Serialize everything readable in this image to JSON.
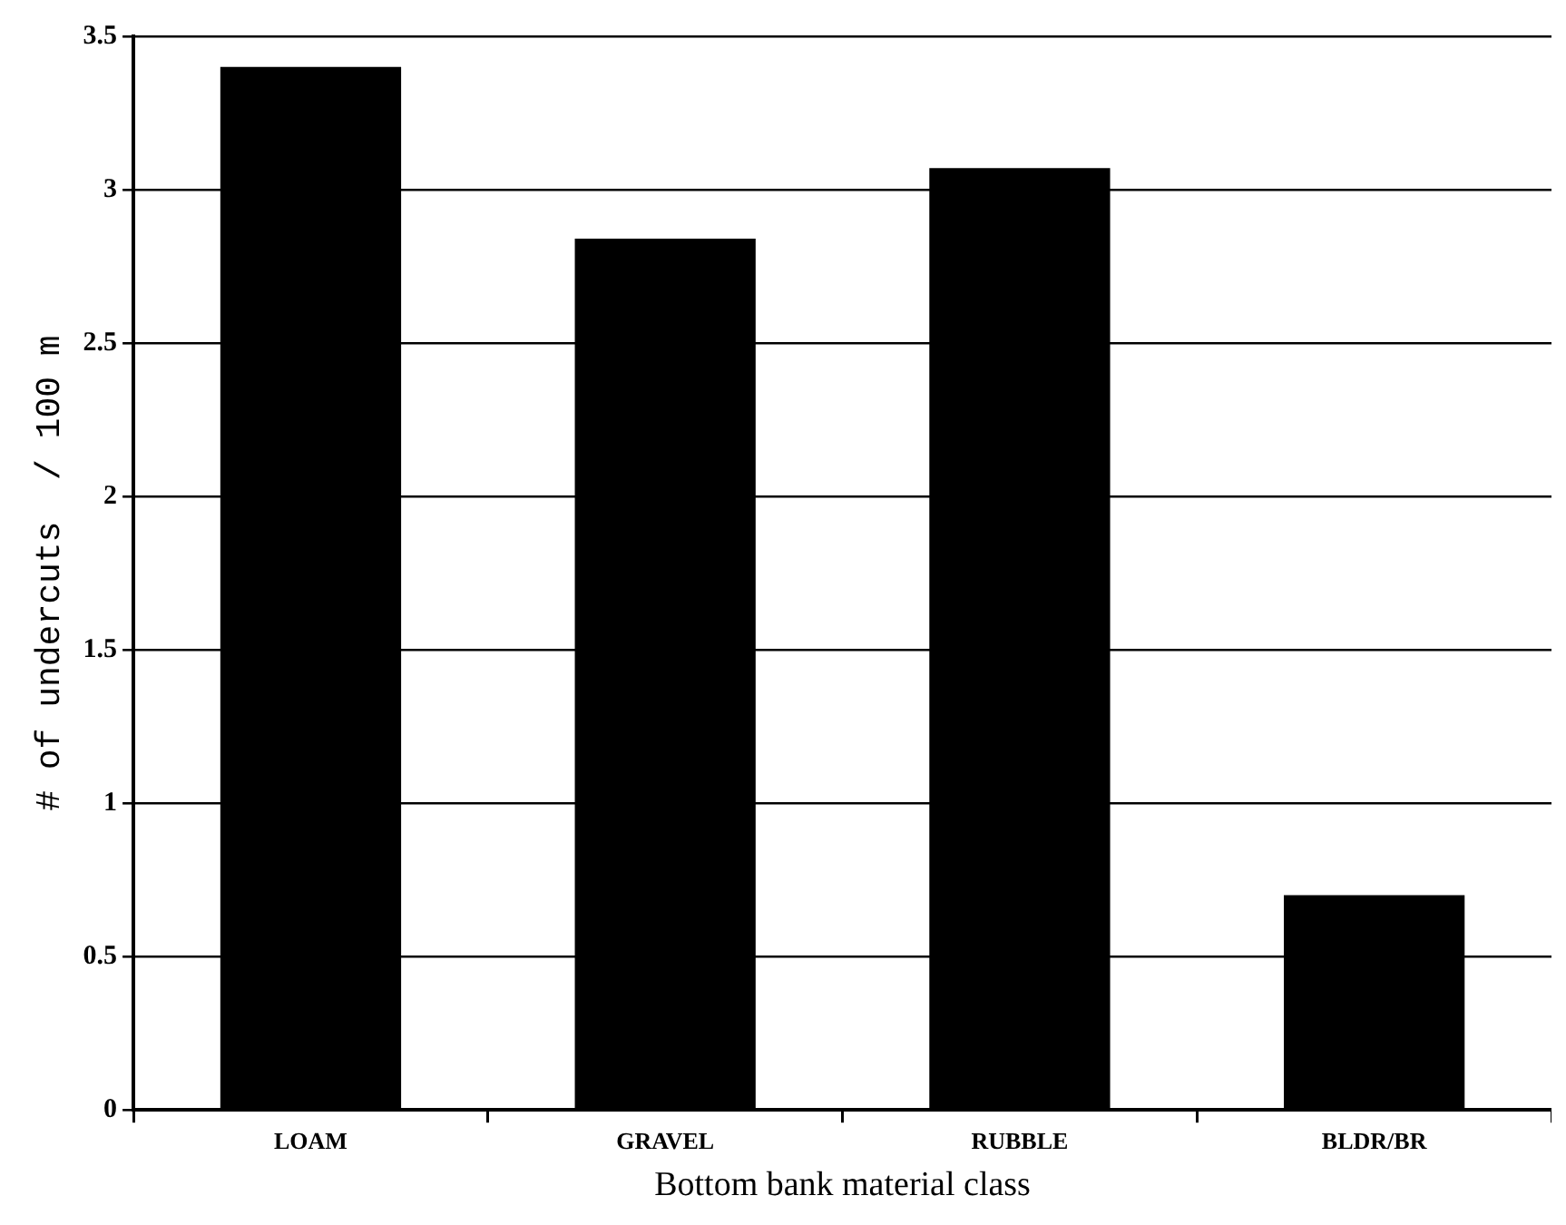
{
  "chart_data": {
    "type": "bar",
    "xlabel": "Bottom bank material class",
    "ylabel": "# of undercuts  / 100 m",
    "categories": [
      "LOAM",
      "GRAVEL",
      "RUBBLE",
      "BLDR/BR"
    ],
    "values": [
      3.4,
      2.84,
      3.07,
      0.7
    ],
    "color": "#000000",
    "ylim": [
      0,
      3.5
    ],
    "yticks": [
      0,
      0.5,
      1,
      1.5,
      2,
      2.5,
      3,
      3.5
    ],
    "grid": "y",
    "legend": false
  }
}
